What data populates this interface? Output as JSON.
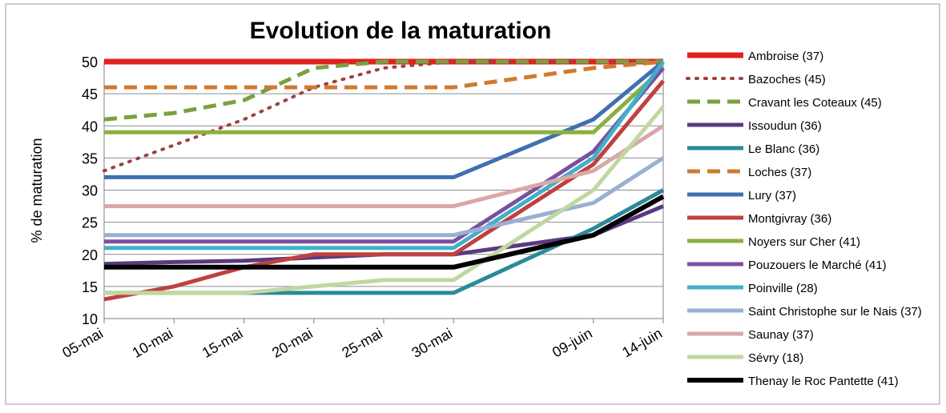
{
  "chart_data": {
    "type": "line",
    "title": "Evolution de la maturation",
    "ylabel": "% de maturation",
    "xlabel": "",
    "ylim": [
      10,
      50
    ],
    "yticks": [
      10,
      15,
      20,
      25,
      30,
      35,
      40,
      45,
      50
    ],
    "ytick_labels": [
      "10",
      "15",
      "20",
      "25",
      "30",
      "35",
      "40",
      "45",
      "50"
    ],
    "x_ticks": [
      {
        "date": "2011-05-05",
        "label": "05-mai"
      },
      {
        "date": "2011-05-10",
        "label": "10-mai"
      },
      {
        "date": "2011-05-15",
        "label": "15-mai"
      },
      {
        "date": "2011-05-20",
        "label": "20-mai"
      },
      {
        "date": "2011-05-25",
        "label": "25-mai"
      },
      {
        "date": "2011-05-30",
        "label": "30-mai"
      },
      {
        "date": "2011-06-09",
        "label": "09-juin"
      },
      {
        "date": "2011-06-14",
        "label": "14-juin"
      }
    ],
    "grid": true,
    "legend_position": "right",
    "series": [
      {
        "name": "Ambroise (37)",
        "color": "#e02020",
        "dash": "solid",
        "width": 7,
        "points": [
          [
            "2011-05-05",
            50
          ],
          [
            "2011-05-10",
            50
          ],
          [
            "2011-05-15",
            50
          ],
          [
            "2011-05-20",
            50
          ],
          [
            "2011-05-25",
            50
          ],
          [
            "2011-05-30",
            50
          ],
          [
            "2011-06-09",
            50
          ],
          [
            "2011-06-14",
            50
          ]
        ]
      },
      {
        "name": "Bazoches (45)",
        "color": "#a04040",
        "dash": "dot",
        "width": 4,
        "points": [
          [
            "2011-05-05",
            33
          ],
          [
            "2011-05-10",
            37
          ],
          [
            "2011-05-15",
            41
          ],
          [
            "2011-05-20",
            46
          ],
          [
            "2011-05-25",
            49
          ],
          [
            "2011-05-30",
            50
          ],
          [
            "2011-06-09",
            50
          ],
          [
            "2011-06-14",
            50
          ]
        ]
      },
      {
        "name": "Cravant les Coteaux (45)",
        "color": "#7aa040",
        "dash": "dash",
        "width": 5,
        "points": [
          [
            "2011-05-05",
            41
          ],
          [
            "2011-05-10",
            42
          ],
          [
            "2011-05-15",
            44
          ],
          [
            "2011-05-20",
            49
          ],
          [
            "2011-05-25",
            50
          ],
          [
            "2011-05-30",
            50
          ],
          [
            "2011-06-09",
            50
          ],
          [
            "2011-06-14",
            50
          ]
        ]
      },
      {
        "name": "Issoudun (36)",
        "color": "#5a3a80",
        "dash": "solid",
        "width": 5,
        "points": [
          [
            "2011-05-05",
            18.5
          ],
          [
            "2011-05-10",
            18.8
          ],
          [
            "2011-05-15",
            19
          ],
          [
            "2011-05-20",
            19.5
          ],
          [
            "2011-05-25",
            20
          ],
          [
            "2011-05-30",
            20
          ],
          [
            "2011-06-09",
            23
          ],
          [
            "2011-06-14",
            27.5
          ]
        ]
      },
      {
        "name": "Le Blanc (36)",
        "color": "#2a8a9a",
        "dash": "solid",
        "width": 5,
        "points": [
          [
            "2011-05-05",
            14
          ],
          [
            "2011-05-10",
            14
          ],
          [
            "2011-05-15",
            14
          ],
          [
            "2011-05-20",
            14
          ],
          [
            "2011-05-25",
            14
          ],
          [
            "2011-05-30",
            14
          ],
          [
            "2011-06-09",
            24
          ],
          [
            "2011-06-14",
            30
          ]
        ]
      },
      {
        "name": "Loches (37)",
        "color": "#d07a30",
        "dash": "dash",
        "width": 5,
        "points": [
          [
            "2011-05-05",
            46
          ],
          [
            "2011-05-10",
            46
          ],
          [
            "2011-05-15",
            46
          ],
          [
            "2011-05-20",
            46
          ],
          [
            "2011-05-25",
            46
          ],
          [
            "2011-05-30",
            46
          ],
          [
            "2011-06-09",
            49
          ],
          [
            "2011-06-14",
            50
          ]
        ]
      },
      {
        "name": "Lury (37)",
        "color": "#4070b0",
        "dash": "solid",
        "width": 5,
        "points": [
          [
            "2011-05-05",
            32
          ],
          [
            "2011-05-10",
            32
          ],
          [
            "2011-05-15",
            32
          ],
          [
            "2011-05-20",
            32
          ],
          [
            "2011-05-25",
            32
          ],
          [
            "2011-05-30",
            32
          ],
          [
            "2011-06-09",
            41
          ],
          [
            "2011-06-14",
            50
          ]
        ]
      },
      {
        "name": "Montgivray (36)",
        "color": "#c04040",
        "dash": "solid",
        "width": 5,
        "points": [
          [
            "2011-05-05",
            13
          ],
          [
            "2011-05-10",
            15
          ],
          [
            "2011-05-15",
            18
          ],
          [
            "2011-05-20",
            20
          ],
          [
            "2011-05-25",
            20
          ],
          [
            "2011-05-30",
            20
          ],
          [
            "2011-06-09",
            34
          ],
          [
            "2011-06-14",
            47
          ]
        ]
      },
      {
        "name": "Noyers sur Cher (41)",
        "color": "#8ab040",
        "dash": "solid",
        "width": 5,
        "points": [
          [
            "2011-05-05",
            39
          ],
          [
            "2011-05-10",
            39
          ],
          [
            "2011-05-15",
            39
          ],
          [
            "2011-05-20",
            39
          ],
          [
            "2011-05-25",
            39
          ],
          [
            "2011-05-30",
            39
          ],
          [
            "2011-06-09",
            39
          ],
          [
            "2011-06-14",
            49
          ]
        ]
      },
      {
        "name": "Pouzouers le Marché (41)",
        "color": "#7a50a0",
        "dash": "solid",
        "width": 5,
        "points": [
          [
            "2011-05-05",
            22
          ],
          [
            "2011-05-10",
            22
          ],
          [
            "2011-05-15",
            22
          ],
          [
            "2011-05-20",
            22
          ],
          [
            "2011-05-25",
            22
          ],
          [
            "2011-05-30",
            22
          ],
          [
            "2011-06-09",
            36
          ],
          [
            "2011-06-14",
            49
          ]
        ]
      },
      {
        "name": "Poinville (28)",
        "color": "#40b0c8",
        "dash": "solid",
        "width": 5,
        "points": [
          [
            "2011-05-05",
            21
          ],
          [
            "2011-05-10",
            21
          ],
          [
            "2011-05-15",
            21
          ],
          [
            "2011-05-20",
            21
          ],
          [
            "2011-05-25",
            21
          ],
          [
            "2011-05-30",
            21
          ],
          [
            "2011-06-09",
            35
          ],
          [
            "2011-06-14",
            50
          ]
        ]
      },
      {
        "name": "Saint Christophe sur le Nais (37)",
        "color": "#9ab0d0",
        "dash": "solid",
        "width": 5,
        "points": [
          [
            "2011-05-05",
            23
          ],
          [
            "2011-05-10",
            23
          ],
          [
            "2011-05-15",
            23
          ],
          [
            "2011-05-20",
            23
          ],
          [
            "2011-05-25",
            23
          ],
          [
            "2011-05-30",
            23
          ],
          [
            "2011-06-09",
            28
          ],
          [
            "2011-06-14",
            35
          ]
        ]
      },
      {
        "name": "Saunay (37)",
        "color": "#d8a8a8",
        "dash": "solid",
        "width": 5,
        "points": [
          [
            "2011-05-05",
            27.5
          ],
          [
            "2011-05-10",
            27.5
          ],
          [
            "2011-05-15",
            27.5
          ],
          [
            "2011-05-20",
            27.5
          ],
          [
            "2011-05-25",
            27.5
          ],
          [
            "2011-05-30",
            27.5
          ],
          [
            "2011-06-09",
            33
          ],
          [
            "2011-06-14",
            40
          ]
        ]
      },
      {
        "name": "Sévry (18)",
        "color": "#c0d8a0",
        "dash": "solid",
        "width": 5,
        "points": [
          [
            "2011-05-05",
            14
          ],
          [
            "2011-05-10",
            14
          ],
          [
            "2011-05-15",
            14
          ],
          [
            "2011-05-20",
            15
          ],
          [
            "2011-05-25",
            16
          ],
          [
            "2011-05-30",
            16
          ],
          [
            "2011-06-09",
            30
          ],
          [
            "2011-06-14",
            43
          ]
        ]
      },
      {
        "name": "Thenay le Roc Pantette (41)",
        "color": "#000000",
        "dash": "solid",
        "width": 6,
        "points": [
          [
            "2011-05-05",
            18
          ],
          [
            "2011-05-10",
            18
          ],
          [
            "2011-05-15",
            18
          ],
          [
            "2011-05-20",
            18
          ],
          [
            "2011-05-25",
            18
          ],
          [
            "2011-05-30",
            18
          ],
          [
            "2011-06-09",
            23
          ],
          [
            "2011-06-14",
            29
          ]
        ]
      }
    ]
  }
}
